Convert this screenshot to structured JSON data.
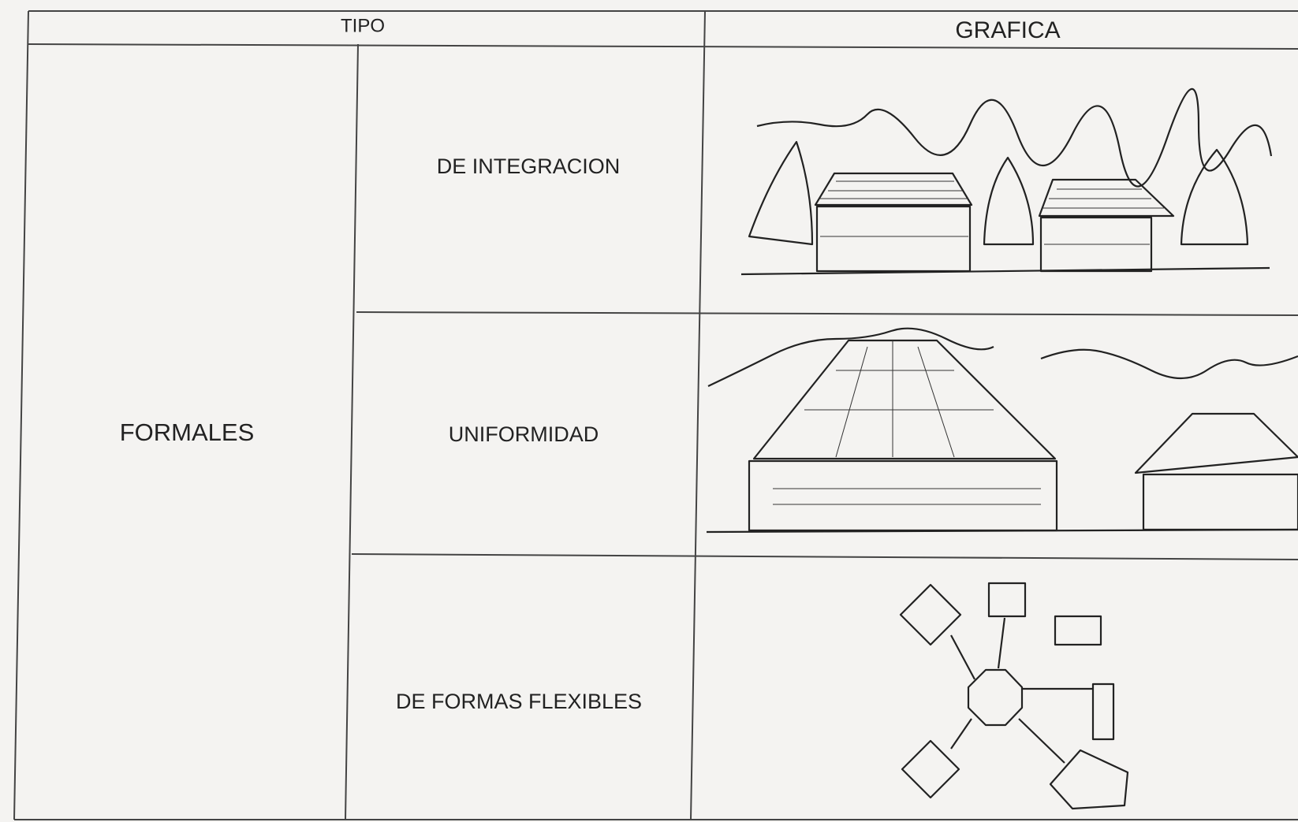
{
  "header": {
    "tipo": "TIPO",
    "grafica": "GRAFICA"
  },
  "category": "FORMALES",
  "rows": [
    "DE INTEGRACION",
    "UNIFORMIDAD",
    "DE FORMAS FLEXIBLES"
  ]
}
